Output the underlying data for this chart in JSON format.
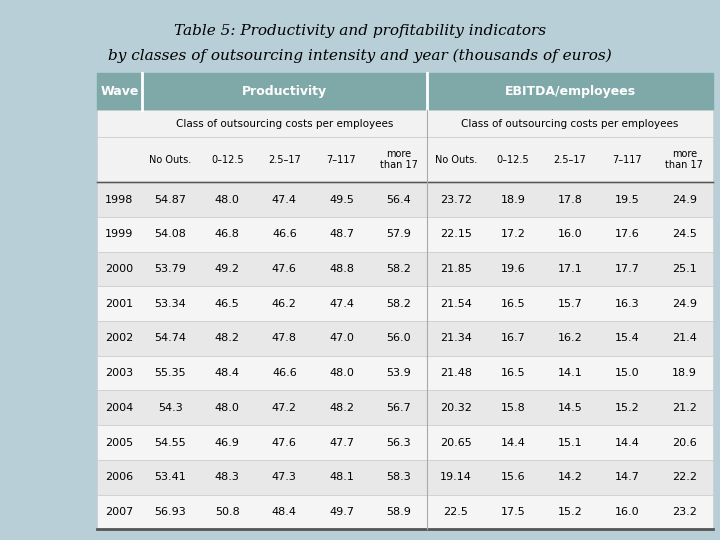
{
  "title_line1": "Table 5: Productivity and profitability indicators",
  "title_line2": "by classes of outsourcing intensity and year (thousands of euros)",
  "header1": "Wave",
  "header2": "Productivity",
  "header3": "EBITDA/employees",
  "subheader": "Class of outsourcing costs per employees",
  "col_headers": [
    "No Outs.",
    "0–12.5",
    "2.5–17",
    "7–117",
    "more\nthan 17"
  ],
  "years": [
    "1998",
    "1999",
    "2000",
    "2001",
    "2002",
    "2003",
    "2004",
    "2005",
    "2006",
    "2007"
  ],
  "productivity": [
    [
      54.87,
      48.0,
      47.4,
      49.5,
      56.4
    ],
    [
      54.08,
      46.8,
      46.6,
      48.7,
      57.9
    ],
    [
      53.79,
      49.2,
      47.6,
      48.8,
      58.2
    ],
    [
      53.34,
      46.5,
      46.2,
      47.4,
      58.2
    ],
    [
      54.74,
      48.2,
      47.8,
      47.0,
      56.0
    ],
    [
      55.35,
      48.4,
      46.6,
      48.0,
      53.9
    ],
    [
      54.3,
      48.0,
      47.2,
      48.2,
      56.7
    ],
    [
      54.55,
      46.9,
      47.6,
      47.7,
      56.3
    ],
    [
      53.41,
      48.3,
      47.3,
      48.1,
      58.3
    ],
    [
      56.93,
      50.8,
      48.4,
      49.7,
      58.9
    ]
  ],
  "ebitda": [
    [
      23.72,
      18.9,
      17.8,
      19.5,
      24.9
    ],
    [
      22.15,
      17.2,
      16.0,
      17.6,
      24.5
    ],
    [
      21.85,
      19.6,
      17.1,
      17.7,
      25.1
    ],
    [
      21.54,
      16.5,
      15.7,
      16.3,
      24.9
    ],
    [
      21.34,
      16.7,
      16.2,
      15.4,
      21.4
    ],
    [
      21.48,
      16.5,
      14.1,
      15.0,
      18.9
    ],
    [
      20.32,
      15.8,
      14.5,
      15.2,
      21.2
    ],
    [
      20.65,
      14.4,
      15.1,
      14.4,
      20.6
    ],
    [
      19.14,
      15.6,
      14.2,
      14.7,
      22.2
    ],
    [
      22.5,
      17.5,
      15.2,
      16.0,
      23.2
    ]
  ],
  "header_bg": "#7fa8a8",
  "row_bg_odd": "#e8e8e8",
  "row_bg_even": "#f5f5f5",
  "left_bg": "#b8cfd8",
  "title_color": "#000000"
}
